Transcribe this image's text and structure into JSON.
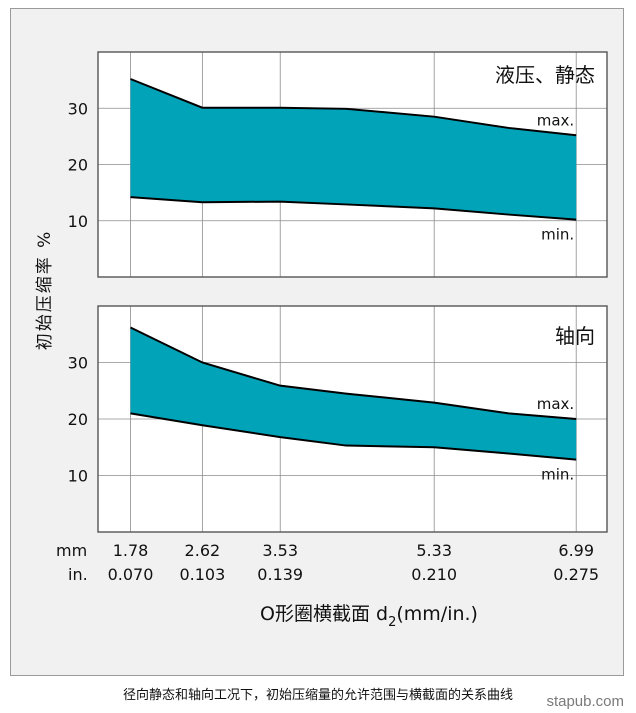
{
  "colors": {
    "fill": "#00a3b8",
    "grid": "#8c8c8c",
    "frame": "#555555",
    "panel_bg": "#ffffff",
    "page_bg": "#f1f1f1"
  },
  "ylabel": "初始压缩率 %",
  "xlabel_main": "O形圈横截面 d",
  "xlabel_sub": "2",
  "xlabel_unit": "(mm/in.)",
  "x_unit_mm": "mm",
  "x_unit_in": "in.",
  "caption": "径向静态和轴向工况下，初始压缩量的允许范围与横截面的关系曲线",
  "watermark": "stapub.com",
  "chart_data": [
    {
      "type": "area",
      "title": "液压、静态",
      "x_ticks_mm": [
        "1.78",
        "2.62",
        "3.53",
        "5.33",
        "6.99"
      ],
      "x_ticks_in": [
        "0.070",
        "0.103",
        "0.139",
        "0.210",
        "0.275"
      ],
      "x": [
        1.78,
        2.62,
        3.53,
        4.3,
        5.33,
        6.2,
        6.99
      ],
      "xlim": [
        1.4,
        7.35
      ],
      "ylim": [
        0,
        40
      ],
      "y_ticks": [
        "10",
        "20",
        "30"
      ],
      "grid": true,
      "series": [
        {
          "name": "max.",
          "values": [
            35.2,
            30.1,
            30.1,
            29.9,
            28.5,
            26.5,
            25.2
          ]
        },
        {
          "name": "min.",
          "values": [
            14.2,
            13.3,
            13.4,
            12.9,
            12.2,
            11.1,
            10.2
          ]
        }
      ]
    },
    {
      "type": "area",
      "title": "轴向",
      "x_ticks_mm": [
        "1.78",
        "2.62",
        "3.53",
        "5.33",
        "6.99"
      ],
      "x_ticks_in": [
        "0.070",
        "0.103",
        "0.139",
        "0.210",
        "0.275"
      ],
      "x": [
        1.78,
        2.62,
        3.53,
        4.3,
        5.33,
        6.2,
        6.99
      ],
      "xlim": [
        1.4,
        7.35
      ],
      "ylim": [
        0,
        40
      ],
      "y_ticks": [
        "10",
        "20",
        "30"
      ],
      "grid": true,
      "series": [
        {
          "name": "max.",
          "values": [
            36.2,
            30.0,
            25.9,
            24.5,
            22.9,
            21.0,
            20.0
          ]
        },
        {
          "name": "min.",
          "values": [
            21.0,
            18.9,
            16.8,
            15.3,
            15.0,
            13.9,
            12.8
          ]
        }
      ]
    }
  ]
}
